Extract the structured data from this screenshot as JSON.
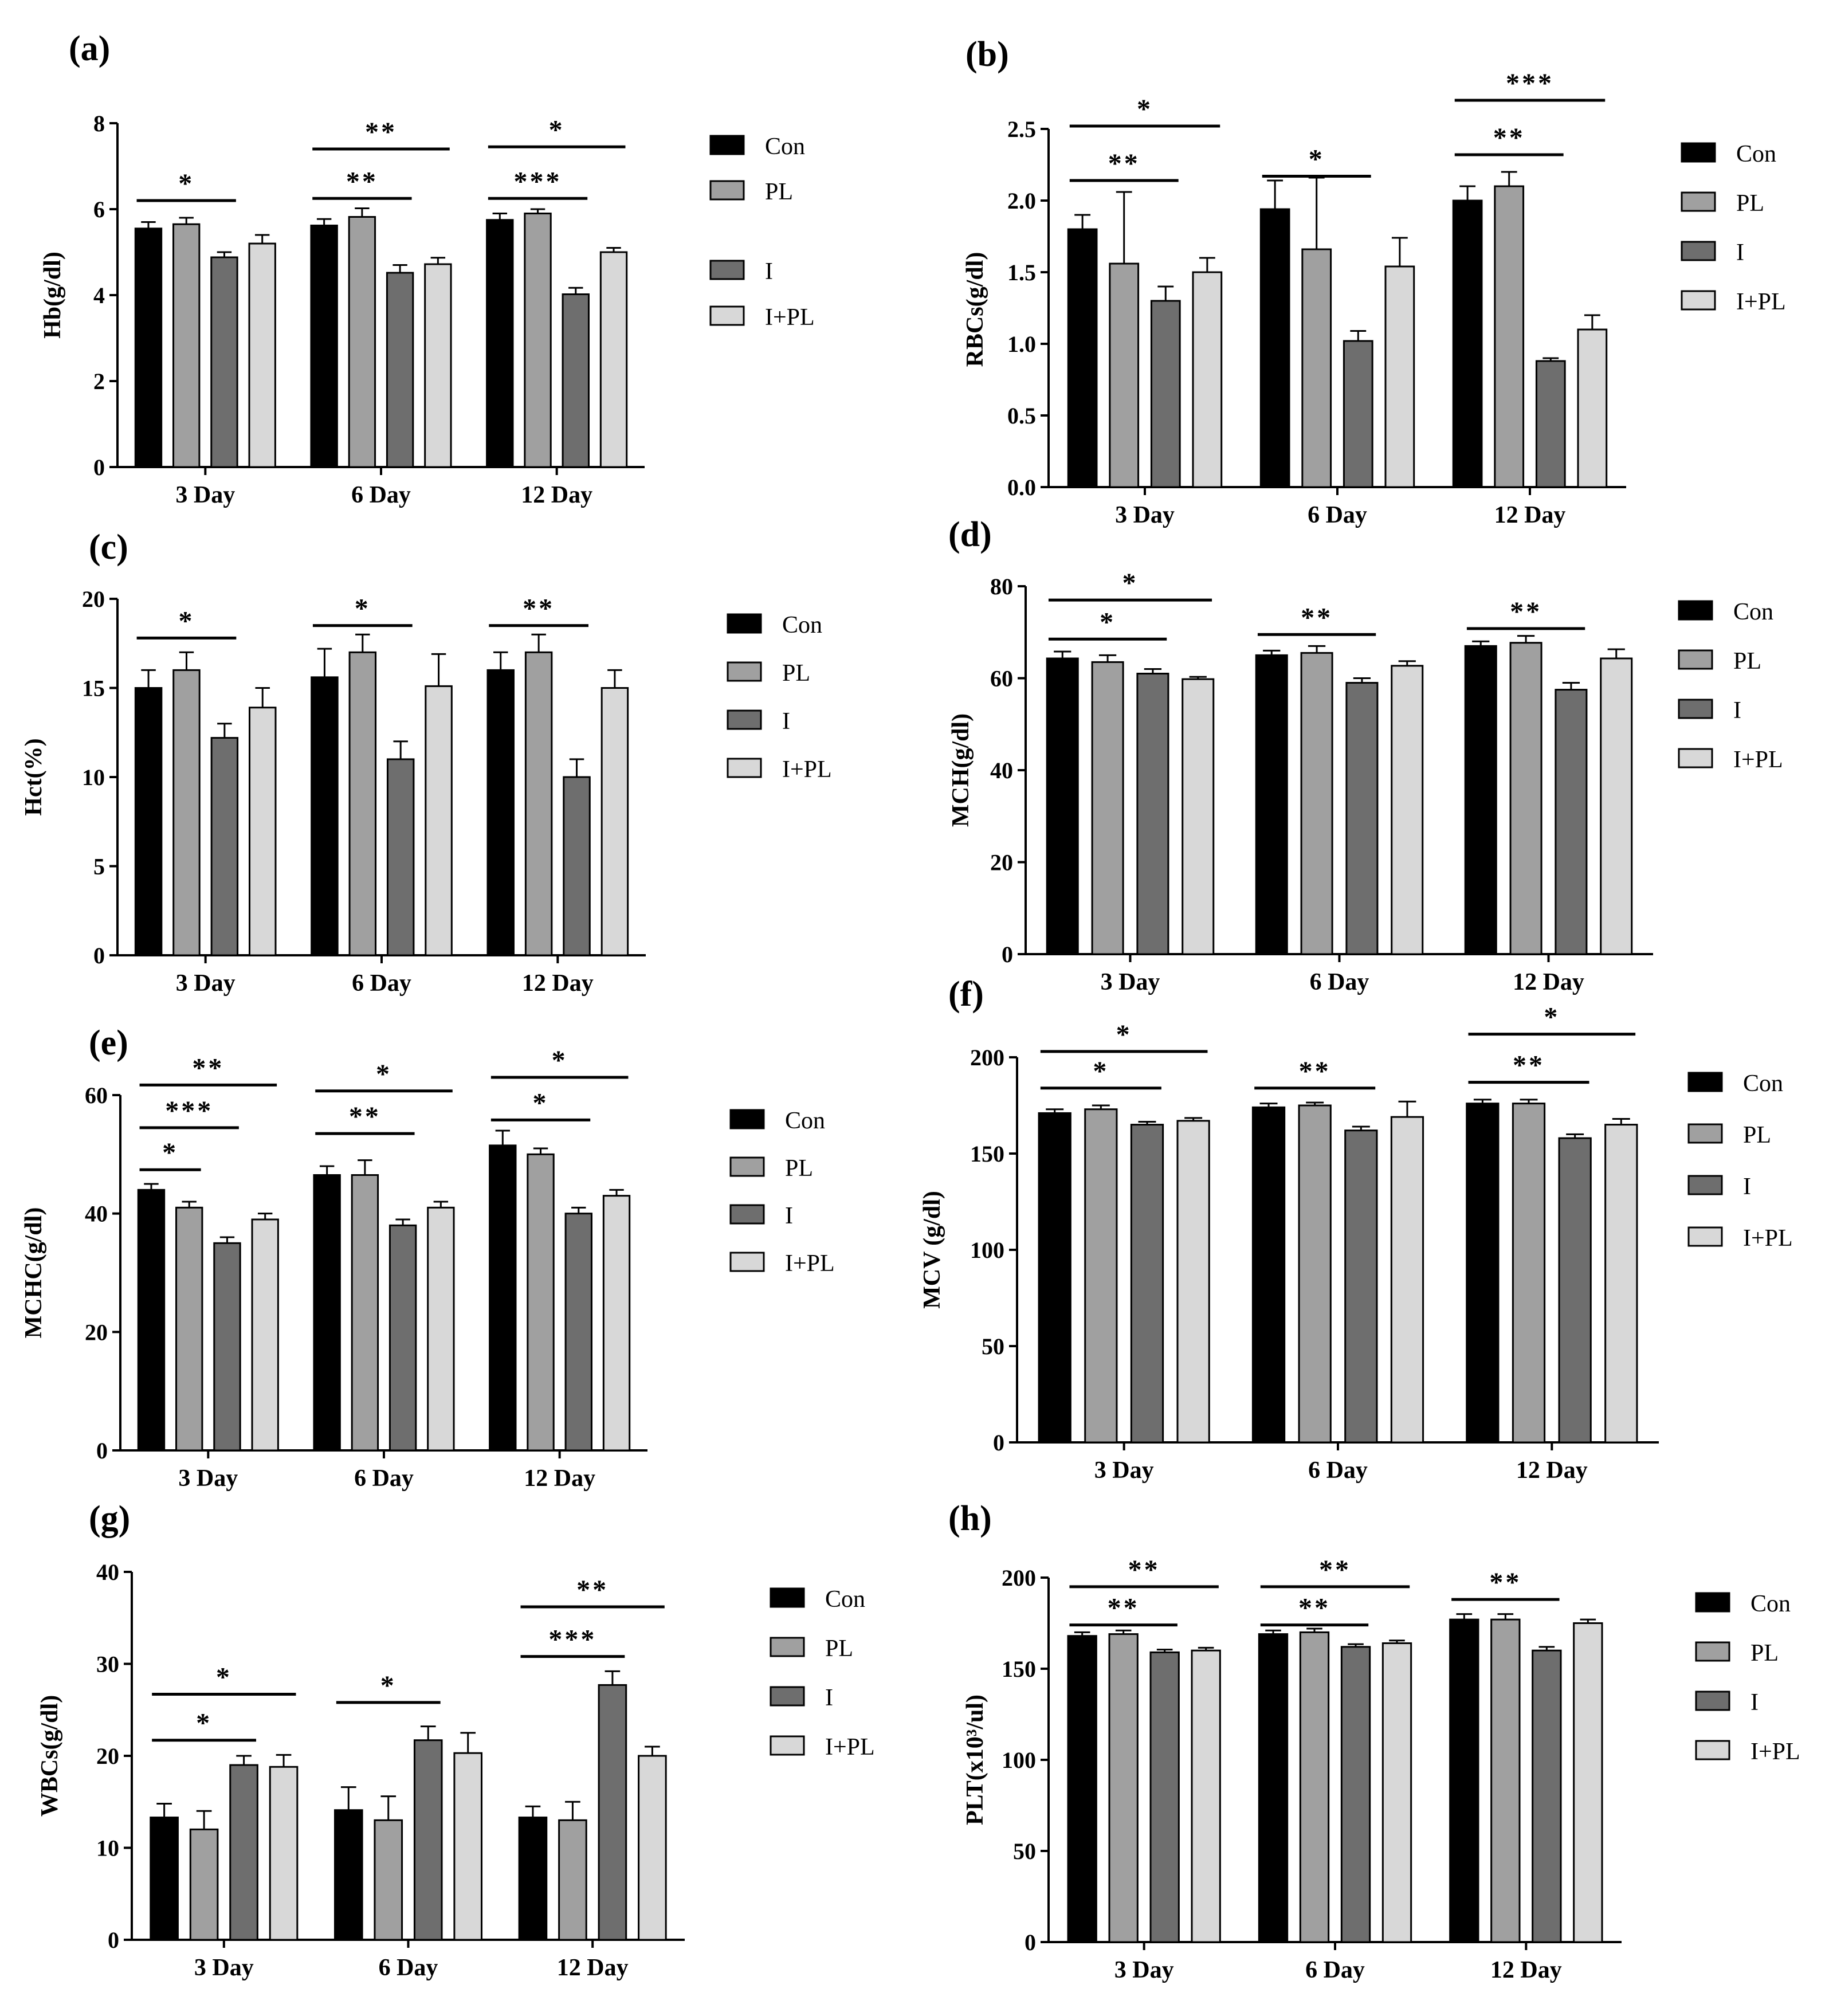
{
  "legend_labels": [
    "Con",
    "PL",
    "I",
    "I+PL"
  ],
  "colors": {
    "Con": "#000000",
    "PL": "#a0a0a0",
    "I": "#6e6e6e",
    "I+PL": "#d8d8d8",
    "stroke": "#000000"
  },
  "chart_data": [
    {
      "id": "a",
      "panel_label": "(a)",
      "type": "bar",
      "ylabel": "Hb(g/dl)",
      "xlabel": "",
      "categories": [
        "3 Day",
        "6 Day",
        "12 Day"
      ],
      "ylim": [
        0,
        8
      ],
      "yticks": [
        "0",
        "2",
        "4",
        "6",
        "8"
      ],
      "ytick_values": [
        0,
        2,
        4,
        6,
        8
      ],
      "series": [
        {
          "name": "Con",
          "values": [
            5.55,
            5.62,
            5.75
          ],
          "errors": [
            0.15,
            0.15,
            0.15
          ]
        },
        {
          "name": "PL",
          "values": [
            5.65,
            5.82,
            5.9
          ],
          "errors": [
            0.15,
            0.2,
            0.1
          ]
        },
        {
          "name": "I",
          "values": [
            4.88,
            4.52,
            4.02
          ],
          "errors": [
            0.12,
            0.18,
            0.15
          ]
        },
        {
          "name": "I+PL",
          "values": [
            5.2,
            4.72,
            5.0
          ],
          "errors": [
            0.2,
            0.15,
            0.1
          ]
        }
      ],
      "significance": [
        {
          "cat": 0,
          "from": 0,
          "to": 2,
          "y": 6.2,
          "label": "*"
        },
        {
          "cat": 1,
          "from": 0,
          "to": 3,
          "y": 7.4,
          "label": "**"
        },
        {
          "cat": 1,
          "from": 0,
          "to": 2,
          "y": 6.25,
          "label": "**"
        },
        {
          "cat": 2,
          "from": 0,
          "to": 3,
          "y": 7.45,
          "label": "*"
        },
        {
          "cat": 2,
          "from": 0,
          "to": 2,
          "y": 6.25,
          "label": "***"
        }
      ]
    },
    {
      "id": "b",
      "panel_label": "(b)",
      "type": "bar",
      "ylabel": "RBCs(g/dl)",
      "xlabel": "",
      "categories": [
        "3 Day",
        "6 Day",
        "12 Day"
      ],
      "ylim": [
        0,
        2.5
      ],
      "yticks": [
        "0.0",
        "0.5",
        "1.0",
        "1.5",
        "2.0",
        "2.5"
      ],
      "ytick_values": [
        0,
        0.5,
        1.0,
        1.5,
        2.0,
        2.5
      ],
      "series": [
        {
          "name": "Con",
          "values": [
            1.8,
            1.94,
            2.0
          ],
          "errors": [
            0.1,
            0.2,
            0.1
          ]
        },
        {
          "name": "PL",
          "values": [
            1.56,
            1.66,
            2.1
          ],
          "errors": [
            0.5,
            0.5,
            0.1
          ]
        },
        {
          "name": "I",
          "values": [
            1.3,
            1.02,
            0.88
          ],
          "errors": [
            0.1,
            0.07,
            0.02
          ]
        },
        {
          "name": "I+PL",
          "values": [
            1.5,
            1.54,
            1.1
          ],
          "errors": [
            0.1,
            0.2,
            0.1
          ]
        }
      ],
      "significance": [
        {
          "cat": 0,
          "from": 0,
          "to": 3,
          "y": 2.52,
          "label": "*"
        },
        {
          "cat": 0,
          "from": 0,
          "to": 2,
          "y": 2.14,
          "label": "**"
        },
        {
          "cat": 1,
          "from": 0,
          "to": 2,
          "y": 2.17,
          "label": "*"
        },
        {
          "cat": 2,
          "from": 0,
          "to": 3,
          "y": 2.7,
          "label": "***"
        },
        {
          "cat": 2,
          "from": 0,
          "to": 2,
          "y": 2.32,
          "label": "**"
        }
      ]
    },
    {
      "id": "c",
      "panel_label": "(c)",
      "type": "bar",
      "ylabel": "Hct(%)",
      "xlabel": "",
      "categories": [
        "3 Day",
        "6 Day",
        "12 Day"
      ],
      "ylim": [
        0,
        20
      ],
      "yticks": [
        "0",
        "5",
        "10",
        "15",
        "20"
      ],
      "ytick_values": [
        0,
        5,
        10,
        15,
        20
      ],
      "series": [
        {
          "name": "Con",
          "values": [
            15.0,
            15.6,
            16.0
          ],
          "errors": [
            1.0,
            1.6,
            1.0
          ]
        },
        {
          "name": "PL",
          "values": [
            16.0,
            17.0,
            17.0
          ],
          "errors": [
            1.0,
            1.0,
            1.0
          ]
        },
        {
          "name": "I",
          "values": [
            12.2,
            11.0,
            10.0
          ],
          "errors": [
            0.8,
            1.0,
            1.0
          ]
        },
        {
          "name": "I+PL",
          "values": [
            13.9,
            15.1,
            15.0
          ],
          "errors": [
            1.1,
            1.8,
            1.0
          ]
        }
      ],
      "significance": [
        {
          "cat": 0,
          "from": 0,
          "to": 2,
          "y": 17.8,
          "label": "*"
        },
        {
          "cat": 1,
          "from": 0,
          "to": 2,
          "y": 18.5,
          "label": "*"
        },
        {
          "cat": 2,
          "from": 0,
          "to": 2,
          "y": 18.5,
          "label": "**"
        }
      ]
    },
    {
      "id": "d",
      "panel_label": "(d)",
      "type": "bar",
      "ylabel": "MCH(g/dl)",
      "xlabel": "",
      "categories": [
        "3 Day",
        "6 Day",
        "12 Day"
      ],
      "ylim": [
        0,
        80
      ],
      "yticks": [
        "0",
        "20",
        "40",
        "60",
        "80"
      ],
      "ytick_values": [
        0,
        20,
        40,
        60,
        80
      ],
      "series": [
        {
          "name": "Con",
          "values": [
            64.3,
            65.0,
            67.0
          ],
          "errors": [
            1.5,
            1.0,
            1.0
          ]
        },
        {
          "name": "PL",
          "values": [
            63.5,
            65.5,
            67.7
          ],
          "errors": [
            1.5,
            1.5,
            1.5
          ]
        },
        {
          "name": "I",
          "values": [
            61.0,
            59.0,
            57.5
          ],
          "errors": [
            1.0,
            1.0,
            1.5
          ]
        },
        {
          "name": "I+PL",
          "values": [
            59.8,
            62.7,
            64.3
          ],
          "errors": [
            0.5,
            1.0,
            2.0
          ]
        }
      ],
      "significance": [
        {
          "cat": 0,
          "from": 0,
          "to": 3,
          "y": 77.0,
          "label": "*"
        },
        {
          "cat": 0,
          "from": 0,
          "to": 2,
          "y": 68.5,
          "label": "*"
        },
        {
          "cat": 1,
          "from": 0,
          "to": 2,
          "y": 69.5,
          "label": "**"
        },
        {
          "cat": 2,
          "from": 0,
          "to": 2,
          "y": 70.8,
          "label": "**"
        }
      ]
    },
    {
      "id": "e",
      "panel_label": "(e)",
      "type": "bar",
      "ylabel": "MCHC(g/dl)",
      "xlabel": "",
      "categories": [
        "3 Day",
        "6 Day",
        "12 Day"
      ],
      "ylim": [
        0,
        60
      ],
      "yticks": [
        "0",
        "20",
        "40",
        "60"
      ],
      "ytick_values": [
        0,
        20,
        40,
        60
      ],
      "series": [
        {
          "name": "Con",
          "values": [
            44.0,
            46.5,
            51.5
          ],
          "errors": [
            1.0,
            1.5,
            2.5
          ]
        },
        {
          "name": "PL",
          "values": [
            41.0,
            46.5,
            50.0
          ],
          "errors": [
            1.0,
            2.5,
            1.0
          ]
        },
        {
          "name": "I",
          "values": [
            35.0,
            38.0,
            40.0
          ],
          "errors": [
            1.0,
            1.0,
            1.0
          ]
        },
        {
          "name": "I+PL",
          "values": [
            39.0,
            41.0,
            43.0
          ],
          "errors": [
            1.0,
            1.0,
            1.0
          ]
        }
      ],
      "significance": [
        {
          "cat": 0,
          "from": 0,
          "to": 3,
          "y": 61.7,
          "label": "**"
        },
        {
          "cat": 0,
          "from": 0,
          "to": 2,
          "y": 54.5,
          "label": "***"
        },
        {
          "cat": 0,
          "from": 0,
          "to": 1,
          "y": 47.4,
          "label": "*"
        },
        {
          "cat": 1,
          "from": 0,
          "to": 3,
          "y": 60.7,
          "label": "*"
        },
        {
          "cat": 1,
          "from": 0,
          "to": 2,
          "y": 53.5,
          "label": "**"
        },
        {
          "cat": 2,
          "from": 0,
          "to": 3,
          "y": 63.0,
          "label": "*"
        },
        {
          "cat": 2,
          "from": 0,
          "to": 2,
          "y": 55.8,
          "label": "*"
        }
      ]
    },
    {
      "id": "f",
      "panel_label": "(f)",
      "type": "bar",
      "ylabel": "MCV (g/dl)",
      "xlabel": "",
      "categories": [
        "3 Day",
        "6 Day",
        "12 Day"
      ],
      "ylim": [
        0,
        200
      ],
      "yticks": [
        "0",
        "50",
        "100",
        "150",
        "200"
      ],
      "ytick_values": [
        0,
        50,
        100,
        150,
        200
      ],
      "series": [
        {
          "name": "Con",
          "values": [
            171.0,
            174.0,
            176.0
          ],
          "errors": [
            2.0,
            2.0,
            2.0
          ]
        },
        {
          "name": "PL",
          "values": [
            173.0,
            175.0,
            176.0
          ],
          "errors": [
            2.0,
            1.5,
            2.0
          ]
        },
        {
          "name": "I",
          "values": [
            165.0,
            162.0,
            158.0
          ],
          "errors": [
            1.5,
            2.0,
            2.0
          ]
        },
        {
          "name": "I+PL",
          "values": [
            167.0,
            169.0,
            165.0
          ],
          "errors": [
            1.5,
            8.0,
            3.0
          ]
        }
      ],
      "significance": [
        {
          "cat": 0,
          "from": 0,
          "to": 3,
          "y": 203.0,
          "label": "*"
        },
        {
          "cat": 0,
          "from": 0,
          "to": 2,
          "y": 184.0,
          "label": "*"
        },
        {
          "cat": 1,
          "from": 0,
          "to": 2,
          "y": 184.0,
          "label": "**"
        },
        {
          "cat": 2,
          "from": 0,
          "to": 3,
          "y": 212.0,
          "label": "*"
        },
        {
          "cat": 2,
          "from": 0,
          "to": 2,
          "y": 187.0,
          "label": "**"
        }
      ]
    },
    {
      "id": "g",
      "panel_label": "(g)",
      "type": "bar",
      "ylabel": "WBCs(g/dl)",
      "xlabel": "",
      "categories": [
        "3 Day",
        "6 Day",
        "12 Day"
      ],
      "ylim": [
        0,
        40
      ],
      "yticks": [
        "0",
        "10",
        "20",
        "30",
        "40"
      ],
      "ytick_values": [
        0,
        10,
        20,
        30,
        40
      ],
      "series": [
        {
          "name": "Con",
          "values": [
            13.3,
            14.1,
            13.3
          ],
          "errors": [
            1.5,
            2.5,
            1.2
          ]
        },
        {
          "name": "PL",
          "values": [
            12.0,
            13.0,
            13.0
          ],
          "errors": [
            2.0,
            2.6,
            2.0
          ]
        },
        {
          "name": "I",
          "values": [
            19.0,
            21.7,
            27.7
          ],
          "errors": [
            1.0,
            1.5,
            1.5
          ]
        },
        {
          "name": "I+PL",
          "values": [
            18.8,
            20.3,
            20.0
          ],
          "errors": [
            1.3,
            2.2,
            1.0
          ]
        }
      ],
      "significance": [
        {
          "cat": 0,
          "from": 0,
          "to": 3,
          "y": 26.7,
          "label": "*"
        },
        {
          "cat": 0,
          "from": 0,
          "to": 2,
          "y": 21.7,
          "label": "*"
        },
        {
          "cat": 1,
          "from": 0,
          "to": 2,
          "y": 25.8,
          "label": "*"
        },
        {
          "cat": 2,
          "from": 0,
          "to": 3,
          "y": 36.2,
          "label": "**"
        },
        {
          "cat": 2,
          "from": 0,
          "to": 2,
          "y": 30.8,
          "label": "***"
        }
      ]
    },
    {
      "id": "h",
      "panel_label": "(h)",
      "type": "bar",
      "ylabel": "PLT(x10³/ul)",
      "xlabel": "",
      "categories": [
        "3 Day",
        "6 Day",
        "12 Day"
      ],
      "ylim": [
        0,
        200
      ],
      "yticks": [
        "0",
        "50",
        "100",
        "150",
        "200"
      ],
      "ytick_values": [
        0,
        50,
        100,
        150,
        200
      ],
      "series": [
        {
          "name": "Con",
          "values": [
            168.0,
            169.0,
            177.0
          ],
          "errors": [
            2.0,
            2.0,
            3.0
          ]
        },
        {
          "name": "PL",
          "values": [
            169.0,
            170.0,
            177.0
          ],
          "errors": [
            2.0,
            2.0,
            3.0
          ]
        },
        {
          "name": "I",
          "values": [
            159.0,
            162.0,
            160.0
          ],
          "errors": [
            1.5,
            1.5,
            2.0
          ]
        },
        {
          "name": "I+PL",
          "values": [
            160.0,
            164.0,
            175.0
          ],
          "errors": [
            1.5,
            1.5,
            2.0
          ]
        }
      ],
      "significance": [
        {
          "cat": 0,
          "from": 0,
          "to": 3,
          "y": 195.0,
          "label": "**"
        },
        {
          "cat": 0,
          "from": 0,
          "to": 2,
          "y": 174.0,
          "label": "**"
        },
        {
          "cat": 1,
          "from": 0,
          "to": 3,
          "y": 195.0,
          "label": "**"
        },
        {
          "cat": 1,
          "from": 0,
          "to": 2,
          "y": 174.0,
          "label": "**"
        },
        {
          "cat": 2,
          "from": 0,
          "to": 2,
          "y": 188.0,
          "label": "**"
        }
      ]
    }
  ]
}
